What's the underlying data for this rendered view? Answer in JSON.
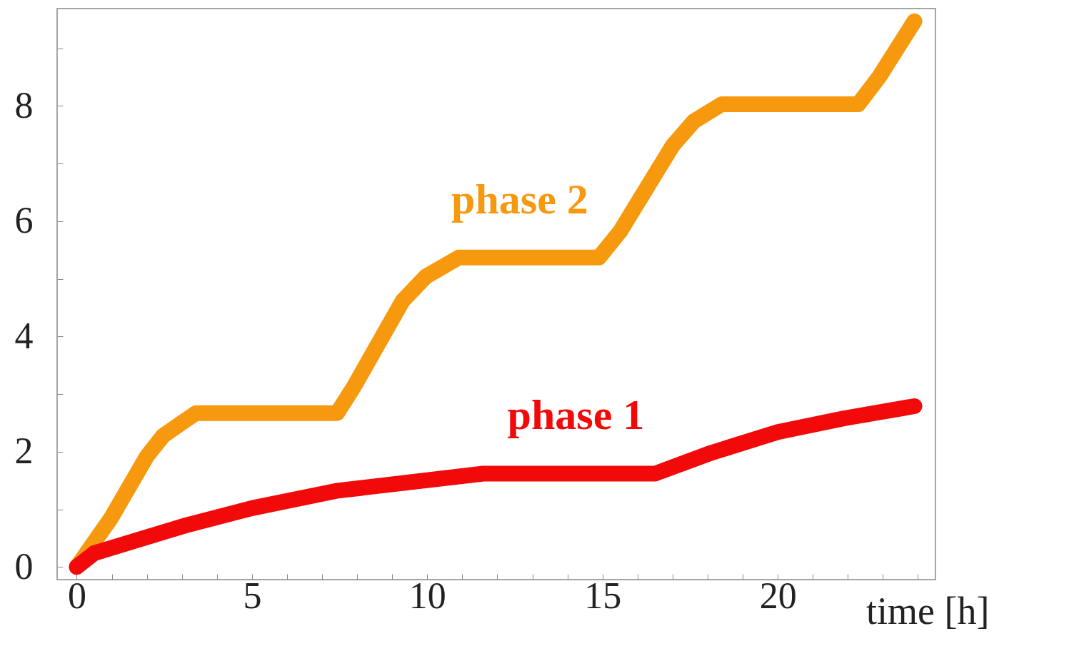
{
  "chart_data": {
    "type": "line",
    "xlabel": "time [h]",
    "xlim": [
      -0.56,
      24.5
    ],
    "ylim": [
      -0.22,
      9.69
    ],
    "xticks": [
      0,
      {
        "value": 1,
        "label": null
      },
      {
        "value": 2,
        "label": null
      },
      {
        "value": 3,
        "label": null
      },
      {
        "value": 4,
        "label": null
      },
      5,
      {
        "value": 6,
        "label": null
      },
      {
        "value": 7,
        "label": null
      },
      {
        "value": 8,
        "label": null
      },
      {
        "value": 9,
        "label": null
      },
      10,
      {
        "value": 11,
        "label": null
      },
      {
        "value": 12,
        "label": null
      },
      {
        "value": 13,
        "label": null
      },
      {
        "value": 14,
        "label": null
      },
      15,
      {
        "value": 16,
        "label": null
      },
      {
        "value": 17,
        "label": null
      },
      {
        "value": 18,
        "label": null
      },
      {
        "value": 19,
        "label": null
      },
      20,
      {
        "value": 21,
        "label": null
      },
      {
        "value": 22,
        "label": null
      },
      {
        "value": 23,
        "label": null
      },
      {
        "value": 24,
        "label": null
      }
    ],
    "yticks": [
      0,
      {
        "value": 1,
        "label": null
      },
      2,
      {
        "value": 3,
        "label": null
      },
      4,
      {
        "value": 5,
        "label": null
      },
      6,
      {
        "value": 7,
        "label": null
      },
      8,
      {
        "value": 9,
        "label": null
      }
    ],
    "grid": false,
    "marker": "none",
    "line_style": "solid",
    "series": [
      {
        "name": "phase 2",
        "color": "#f7990f",
        "x": [
          0,
          0.97,
          2,
          2.47,
          3.4,
          7.43,
          7.9,
          9.3,
          9.96,
          10.9,
          14.9,
          15.5,
          17,
          17.6,
          18.4,
          22.3,
          22.9,
          23.9
        ],
        "values": [
          0,
          0.84,
          1.92,
          2.28,
          2.67,
          2.67,
          3.12,
          4.62,
          5.04,
          5.37,
          5.37,
          5.82,
          7.31,
          7.73,
          8.03,
          8.03,
          8.51,
          9.47
        ]
      },
      {
        "name": "phase 1",
        "color": "#f20a0a",
        "x": [
          0,
          0.5,
          3.1,
          5,
          7.4,
          11.6,
          16.5,
          18.1,
          20,
          21.9,
          23.9
        ],
        "values": [
          0,
          0.24,
          0.72,
          1.02,
          1.32,
          1.62,
          1.62,
          1.98,
          2.34,
          2.58,
          2.79
        ]
      }
    ]
  }
}
